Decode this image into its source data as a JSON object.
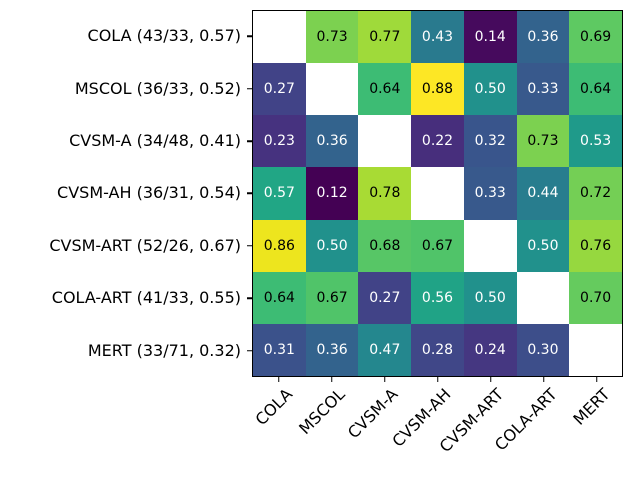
{
  "figure": {
    "background": "#ffffff"
  },
  "chart_data": {
    "type": "heatmap",
    "title": "",
    "xlabel": "",
    "ylabel": "",
    "rows": [
      "COLA (43/33, 0.57)",
      "MSCOL (36/33, 0.52)",
      "CVSM-A (34/48, 0.41)",
      "CVSM-AH (36/31, 0.54)",
      "CVSM-ART (52/26, 0.67)",
      "COLA-ART (41/33, 0.55)",
      "MERT (33/71, 0.32)"
    ],
    "columns": [
      "COLA",
      "MSCOL",
      "CVSM-A",
      "CVSM-AH",
      "CVSM-ART",
      "COLA-ART",
      "MERT"
    ],
    "matrix": [
      [
        null,
        0.73,
        0.77,
        0.43,
        0.14,
        0.36,
        0.69
      ],
      [
        0.27,
        null,
        0.64,
        0.88,
        0.5,
        0.33,
        0.64
      ],
      [
        0.23,
        0.36,
        null,
        0.22,
        0.32,
        0.73,
        0.53
      ],
      [
        0.57,
        0.12,
        0.78,
        null,
        0.33,
        0.44,
        0.72
      ],
      [
        0.86,
        0.5,
        0.68,
        0.67,
        null,
        0.5,
        0.76
      ],
      [
        0.64,
        0.67,
        0.27,
        0.56,
        0.5,
        null,
        0.7
      ],
      [
        0.31,
        0.36,
        0.47,
        0.28,
        0.24,
        0.3,
        null
      ]
    ],
    "cell_value_format": "0.00",
    "colormap": {
      "name": "viridis",
      "vmin": 0.12,
      "vmax": 0.88,
      "stops": [
        "#440154",
        "#471365",
        "#482475",
        "#463480",
        "#414487",
        "#3b528b",
        "#355f8d",
        "#2f6b8e",
        "#2a788e",
        "#25848e",
        "#21918c",
        "#1e9c89",
        "#22a884",
        "#2fb47c",
        "#44bf70",
        "#5ec962",
        "#7ad151",
        "#9bd93c",
        "#bddf26",
        "#dfe318",
        "#fde725"
      ],
      "nan_color": "#ffffff",
      "annotation_light": "#ffffff",
      "annotation_dark": "#000000",
      "dark_text_threshold": 0.62
    },
    "axes": {
      "spine_color": "#000000",
      "tick_color": "#000000",
      "x_tick_rotation_deg": 45,
      "grid": false,
      "legend": "none"
    }
  }
}
